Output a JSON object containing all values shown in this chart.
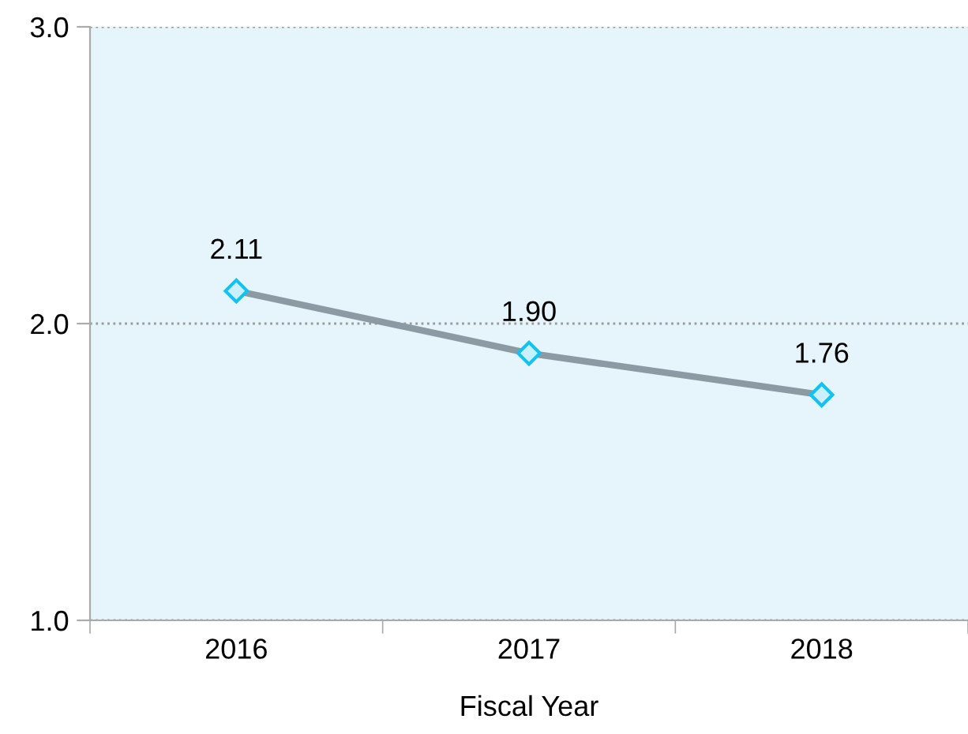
{
  "chart_data": {
    "type": "line",
    "xlabel": "Fiscal Year",
    "categories": [
      "2016",
      "2017",
      "2018"
    ],
    "series": [
      {
        "color": "#8c9ba3",
        "values": [
          2.11,
          1.9,
          1.76
        ]
      }
    ],
    "value_labels": [
      "2.11",
      "1.90",
      "1.76"
    ],
    "ylim": [
      1,
      3
    ],
    "yticks": [
      {
        "value": 1,
        "label": "1.0"
      },
      {
        "value": 2,
        "label": "2.0"
      },
      {
        "value": 3,
        "label": "3.0"
      }
    ],
    "grid": "y",
    "marker": "diamond",
    "line_style": "solid",
    "legend": false
  }
}
